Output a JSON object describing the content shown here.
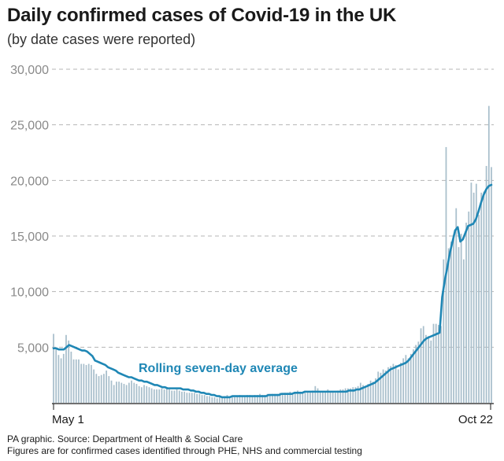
{
  "chart_data": {
    "type": "bar",
    "title": "Daily confirmed cases of Covid-19 in the UK",
    "subtitle": "(by date cases were reported)",
    "ylim": [
      0,
      30000
    ],
    "yticks": [
      5000,
      10000,
      15000,
      20000,
      25000,
      30000
    ],
    "ytick_labels": [
      "5,000",
      "10,000",
      "15,000",
      "20,000",
      "25,000",
      "30,000"
    ],
    "x_start_label": "May 1",
    "x_end_label": "Oct 22",
    "grid": "horizontal dashed",
    "annotation": "Rolling seven-day average",
    "series": [
      {
        "kind": "bar",
        "values": [
          6200,
          4800,
          4300,
          4000,
          4400,
          6100,
          5600,
          4600,
          3900,
          3900,
          3900,
          3500,
          3500,
          3400,
          3500,
          3400,
          3000,
          2600,
          2400,
          2500,
          2600,
          2900,
          2400,
          2000,
          1600,
          1900,
          1900,
          1800,
          1700,
          1600,
          1800,
          2000,
          1800,
          1700,
          1500,
          1400,
          1600,
          1500,
          1400,
          1300,
          1200,
          1200,
          1200,
          1300,
          1200,
          1300,
          1200,
          1100,
          1100,
          1200,
          1100,
          1000,
          1000,
          900,
          900,
          900,
          900,
          800,
          800,
          700,
          700,
          600,
          600,
          500,
          500,
          400,
          500,
          500,
          600,
          700,
          600,
          600,
          500,
          600,
          700,
          600,
          600,
          700,
          700,
          600,
          700,
          700,
          800,
          700,
          700,
          800,
          700,
          800,
          800,
          800,
          900,
          800,
          900,
          900,
          1000,
          900,
          1000,
          1100,
          1000,
          900,
          900,
          1000,
          1000,
          1100,
          1500,
          1300,
          1000,
          1000,
          1000,
          1200,
          1000,
          1000,
          900,
          1100,
          1200,
          1200,
          1300,
          1300,
          1300,
          1400,
          1400,
          1500,
          1800,
          1600,
          1500,
          1700,
          2000,
          1900,
          2200,
          2800,
          2700,
          3000,
          2900,
          3200,
          3300,
          3500,
          3400,
          3000,
          3600,
          4000,
          4300,
          4000,
          4400,
          4800,
          5200,
          5500,
          6700,
          6900,
          6100,
          6000,
          5600,
          7100,
          7100,
          7000,
          6900,
          12900,
          23000,
          13900,
          14500,
          15100,
          17500,
          14000,
          15200,
          12900,
          16200,
          17200,
          19800,
          18900,
          19700,
          16900,
          18900,
          19000,
          21300,
          26700,
          21200
        ]
      },
      {
        "kind": "line",
        "name": "Rolling seven-day average",
        "values": [
          4900,
          4900,
          4800,
          4800,
          4800,
          5000,
          5200,
          5100,
          5000,
          4900,
          4800,
          4700,
          4700,
          4600,
          4400,
          4200,
          3800,
          3700,
          3600,
          3500,
          3400,
          3200,
          3100,
          3000,
          2900,
          2700,
          2600,
          2500,
          2400,
          2300,
          2300,
          2200,
          2100,
          2000,
          2000,
          1900,
          1900,
          1800,
          1700,
          1600,
          1600,
          1500,
          1400,
          1400,
          1300,
          1300,
          1300,
          1300,
          1300,
          1300,
          1200,
          1200,
          1200,
          1100,
          1100,
          1000,
          1000,
          900,
          900,
          800,
          800,
          700,
          700,
          600,
          600,
          500,
          500,
          500,
          500,
          600,
          600,
          600,
          600,
          600,
          600,
          600,
          600,
          600,
          600,
          600,
          600,
          600,
          600,
          700,
          700,
          700,
          700,
          700,
          800,
          800,
          800,
          800,
          800,
          900,
          900,
          900,
          900,
          1000,
          1000,
          1000,
          1000,
          1000,
          1000,
          1000,
          1000,
          1000,
          1000,
          1000,
          1000,
          1000,
          1000,
          1000,
          1000,
          1000,
          1100,
          1100,
          1100,
          1200,
          1200,
          1300,
          1400,
          1500,
          1600,
          1700,
          1800,
          2000,
          2200,
          2400,
          2600,
          2800,
          3000,
          3100,
          3200,
          3300,
          3400,
          3500,
          3600,
          3800,
          4100,
          4400,
          4700,
          5000,
          5300,
          5600,
          5800,
          5900,
          6000,
          6100,
          6200,
          6300,
          9500,
          11000,
          12200,
          13500,
          14500,
          15500,
          15800,
          14500,
          14700,
          15300,
          15900,
          16000,
          16100,
          16500,
          17200,
          18000,
          18700,
          19200,
          19500,
          19600
        ]
      }
    ]
  },
  "footer": {
    "source": "PA graphic. Source: Department of Health & Social Care",
    "note": "Figures are for confirmed cases identified through PHE, NHS and commercial testing"
  },
  "colors": {
    "bars": "#a9bfcc",
    "line": "#1f87b5",
    "grid": "#b5b5b5",
    "axis": "#1a1a1a"
  }
}
